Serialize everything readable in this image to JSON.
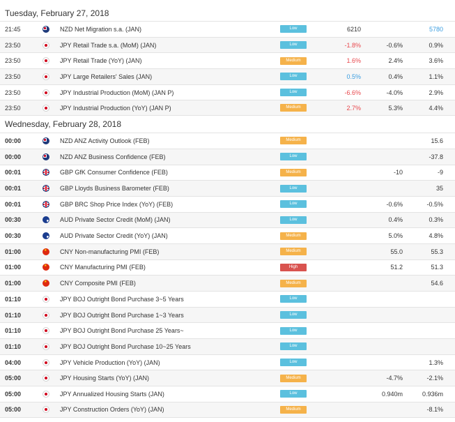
{
  "colors": {
    "low_badge": "#5bc0de",
    "medium_badge": "#f5b24a",
    "high_badge": "#d9534f",
    "negative": "#e8474c",
    "positive": "#3a9de0"
  },
  "days": [
    {
      "date": "Tuesday, February 27, 2018",
      "events": [
        {
          "time": "21:45",
          "flag": "nzd",
          "flag_icon": "nz-flag-icon",
          "event": "NZD Net Migration s.a. (JAN)",
          "impact": "Low",
          "impact_level": "low",
          "actual": "6210",
          "actual_tone": "",
          "forecast": "",
          "previous": "5780",
          "previous_tone": "pos"
        },
        {
          "time": "23:50",
          "flag": "jpy",
          "flag_icon": "jp-flag-icon",
          "event": "JPY Retail Trade s.a. (MoM) (JAN)",
          "impact": "Low",
          "impact_level": "low",
          "actual": "-1.8%",
          "actual_tone": "neg",
          "forecast": "-0.6%",
          "previous": "0.9%",
          "previous_tone": ""
        },
        {
          "time": "23:50",
          "flag": "jpy",
          "flag_icon": "jp-flag-icon",
          "event": "JPY Retail Trade (YoY) (JAN)",
          "impact": "Medium",
          "impact_level": "medium",
          "actual": "1.6%",
          "actual_tone": "neg",
          "forecast": "2.4%",
          "previous": "3.6%",
          "previous_tone": ""
        },
        {
          "time": "23:50",
          "flag": "jpy",
          "flag_icon": "jp-flag-icon",
          "event": "JPY Large Retailers' Sales (JAN)",
          "impact": "Low",
          "impact_level": "low",
          "actual": "0.5%",
          "actual_tone": "pos",
          "forecast": "0.4%",
          "previous": "1.1%",
          "previous_tone": ""
        },
        {
          "time": "23:50",
          "flag": "jpy",
          "flag_icon": "jp-flag-icon",
          "event": "JPY Industrial Production (MoM) (JAN P)",
          "impact": "Low",
          "impact_level": "low",
          "actual": "-6.6%",
          "actual_tone": "neg",
          "forecast": "-4.0%",
          "previous": "2.9%",
          "previous_tone": ""
        },
        {
          "time": "23:50",
          "flag": "jpy",
          "flag_icon": "jp-flag-icon",
          "event": "JPY Industrial Production (YoY) (JAN P)",
          "impact": "Medium",
          "impact_level": "medium",
          "actual": "2.7%",
          "actual_tone": "neg",
          "forecast": "5.3%",
          "previous": "4.4%",
          "previous_tone": ""
        }
      ]
    },
    {
      "date": "Wednesday, February 28, 2018",
      "events": [
        {
          "time": "00:00",
          "flag": "nzd",
          "flag_icon": "nz-flag-icon",
          "event": "NZD ANZ Activity Outlook (FEB)",
          "impact": "Medium",
          "impact_level": "medium",
          "actual": "",
          "actual_tone": "",
          "forecast": "",
          "previous": "15.6",
          "previous_tone": ""
        },
        {
          "time": "00:00",
          "flag": "nzd",
          "flag_icon": "nz-flag-icon",
          "event": "NZD ANZ Business Confidence (FEB)",
          "impact": "Low",
          "impact_level": "low",
          "actual": "",
          "actual_tone": "",
          "forecast": "",
          "previous": "-37.8",
          "previous_tone": ""
        },
        {
          "time": "00:01",
          "flag": "gbp",
          "flag_icon": "uk-flag-icon",
          "event": "GBP GfK Consumer Confidence (FEB)",
          "impact": "Medium",
          "impact_level": "medium",
          "actual": "",
          "actual_tone": "",
          "forecast": "-10",
          "previous": "-9",
          "previous_tone": ""
        },
        {
          "time": "00:01",
          "flag": "gbp",
          "flag_icon": "uk-flag-icon",
          "event": "GBP Lloyds Business Barometer (FEB)",
          "impact": "Low",
          "impact_level": "low",
          "actual": "",
          "actual_tone": "",
          "forecast": "",
          "previous": "35",
          "previous_tone": ""
        },
        {
          "time": "00:01",
          "flag": "gbp",
          "flag_icon": "uk-flag-icon",
          "event": "GBP BRC Shop Price Index (YoY) (FEB)",
          "impact": "Low",
          "impact_level": "low",
          "actual": "",
          "actual_tone": "",
          "forecast": "-0.6%",
          "previous": "-0.5%",
          "previous_tone": ""
        },
        {
          "time": "00:30",
          "flag": "aud",
          "flag_icon": "au-flag-icon",
          "event": "AUD Private Sector Credit (MoM) (JAN)",
          "impact": "Low",
          "impact_level": "low",
          "actual": "",
          "actual_tone": "",
          "forecast": "0.4%",
          "previous": "0.3%",
          "previous_tone": ""
        },
        {
          "time": "00:30",
          "flag": "aud",
          "flag_icon": "au-flag-icon",
          "event": "AUD Private Sector Credit (YoY) (JAN)",
          "impact": "Medium",
          "impact_level": "medium",
          "actual": "",
          "actual_tone": "",
          "forecast": "5.0%",
          "previous": "4.8%",
          "previous_tone": ""
        },
        {
          "time": "01:00",
          "flag": "cny",
          "flag_icon": "cn-flag-icon",
          "event": "CNY Non-manufacturing PMI (FEB)",
          "impact": "Medium",
          "impact_level": "medium",
          "actual": "",
          "actual_tone": "",
          "forecast": "55.0",
          "previous": "55.3",
          "previous_tone": ""
        },
        {
          "time": "01:00",
          "flag": "cny",
          "flag_icon": "cn-flag-icon",
          "event": "CNY Manufacturing PMI (FEB)",
          "impact": "High",
          "impact_level": "high",
          "actual": "",
          "actual_tone": "",
          "forecast": "51.2",
          "previous": "51.3",
          "previous_tone": ""
        },
        {
          "time": "01:00",
          "flag": "cny",
          "flag_icon": "cn-flag-icon",
          "event": "CNY Composite PMI (FEB)",
          "impact": "Medium",
          "impact_level": "medium",
          "actual": "",
          "actual_tone": "",
          "forecast": "",
          "previous": "54.6",
          "previous_tone": ""
        },
        {
          "time": "01:10",
          "flag": "jpy",
          "flag_icon": "jp-flag-icon",
          "event": "JPY BOJ Outright Bond Purchase 3~5 Years",
          "impact": "Low",
          "impact_level": "low",
          "actual": "",
          "actual_tone": "",
          "forecast": "",
          "previous": "",
          "previous_tone": ""
        },
        {
          "time": "01:10",
          "flag": "jpy",
          "flag_icon": "jp-flag-icon",
          "event": "JPY BOJ Outright Bond Purchase 1~3 Years",
          "impact": "Low",
          "impact_level": "low",
          "actual": "",
          "actual_tone": "",
          "forecast": "",
          "previous": "",
          "previous_tone": ""
        },
        {
          "time": "01:10",
          "flag": "jpy",
          "flag_icon": "jp-flag-icon",
          "event": "JPY BOJ Outright Bond Purchase 25 Years~",
          "impact": "Low",
          "impact_level": "low",
          "actual": "",
          "actual_tone": "",
          "forecast": "",
          "previous": "",
          "previous_tone": ""
        },
        {
          "time": "01:10",
          "flag": "jpy",
          "flag_icon": "jp-flag-icon",
          "event": "JPY BOJ Outright Bond Purchase 10~25 Years",
          "impact": "Low",
          "impact_level": "low",
          "actual": "",
          "actual_tone": "",
          "forecast": "",
          "previous": "",
          "previous_tone": ""
        },
        {
          "time": "04:00",
          "flag": "jpy",
          "flag_icon": "jp-flag-icon",
          "event": "JPY Vehicle Production (YoY) (JAN)",
          "impact": "Low",
          "impact_level": "low",
          "actual": "",
          "actual_tone": "",
          "forecast": "",
          "previous": "1.3%",
          "previous_tone": ""
        },
        {
          "time": "05:00",
          "flag": "jpy",
          "flag_icon": "jp-flag-icon",
          "event": "JPY Housing Starts (YoY) (JAN)",
          "impact": "Medium",
          "impact_level": "medium",
          "actual": "",
          "actual_tone": "",
          "forecast": "-4.7%",
          "previous": "-2.1%",
          "previous_tone": ""
        },
        {
          "time": "05:00",
          "flag": "jpy",
          "flag_icon": "jp-flag-icon",
          "event": "JPY Annualized Housing Starts (JAN)",
          "impact": "Low",
          "impact_level": "low",
          "actual": "",
          "actual_tone": "",
          "forecast": "0.940m",
          "previous": "0.936m",
          "previous_tone": ""
        },
        {
          "time": "05:00",
          "flag": "jpy",
          "flag_icon": "jp-flag-icon",
          "event": "JPY Construction Orders (YoY) (JAN)",
          "impact": "Medium",
          "impact_level": "medium",
          "actual": "",
          "actual_tone": "",
          "forecast": "",
          "previous": "-8.1%",
          "previous_tone": ""
        }
      ]
    }
  ]
}
